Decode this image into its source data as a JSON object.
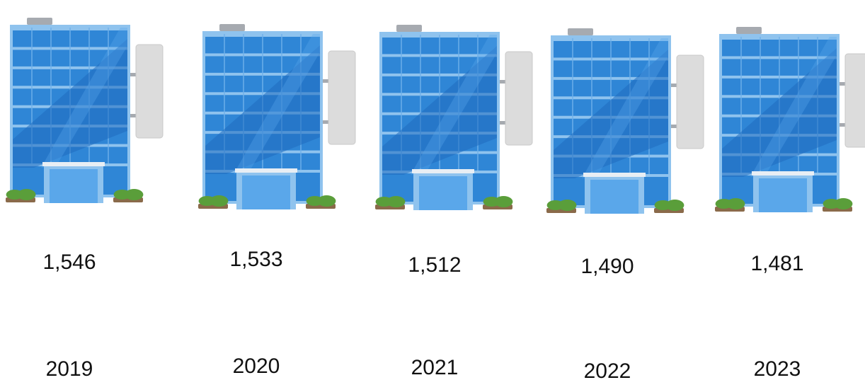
{
  "colors": {
    "glass": "#2f86d6",
    "glass_dark": "#1f6cc0",
    "glass_light": "#5aa7ea",
    "frame": "#8fc3ee",
    "roof": "#a6aab0",
    "sign": "#dcdcdc",
    "sign_border": "#c9c9c9",
    "bush": "#5a9e3a",
    "soil": "#8a6a4a",
    "text": "#111111"
  },
  "chart_data": {
    "type": "bar",
    "mark": "building-icon",
    "title": "",
    "xlabel": "",
    "ylabel": "",
    "categories": [
      "2019",
      "2020",
      "2021",
      "2022",
      "2023"
    ],
    "values": [
      1546,
      1533,
      1512,
      1490,
      1481
    ],
    "value_labels": [
      "1,546",
      "1,533",
      "1,512",
      "1,490",
      "1,481"
    ],
    "grid": false,
    "legend": "none"
  }
}
